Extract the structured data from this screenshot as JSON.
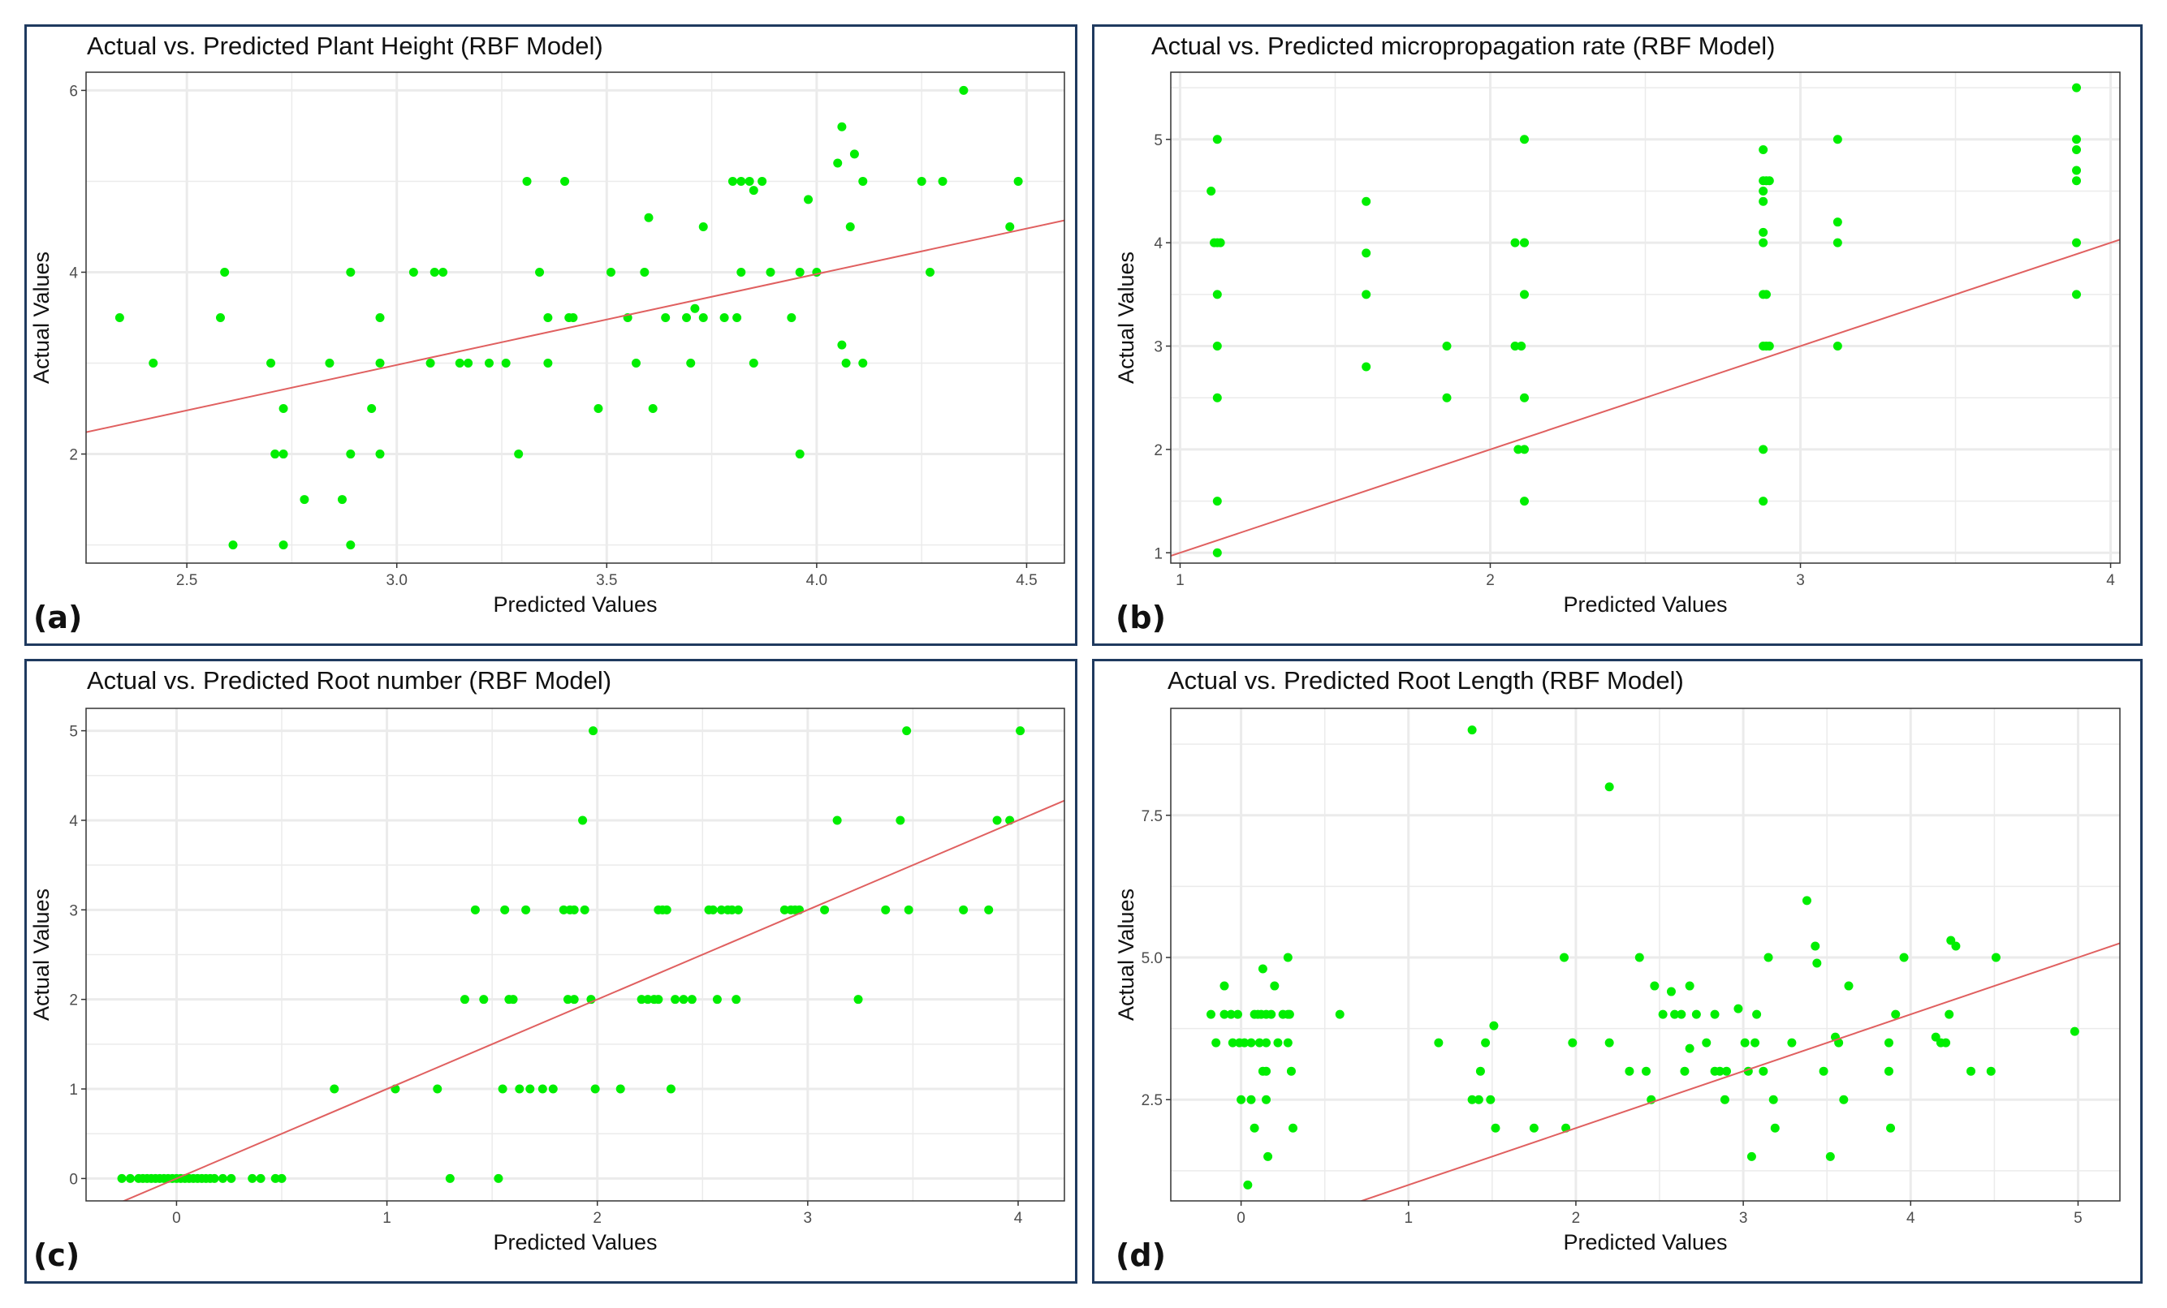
{
  "colors": {
    "point": "#00ee00",
    "line": "#e06060",
    "grid": "#ebebeb",
    "frame": "#333333",
    "panel_border": "#1f3a5f"
  },
  "chart_data": [
    {
      "id": "a",
      "type": "scatter",
      "letter": "(a)",
      "title": "Actual vs. Predicted Plant Height (RBF Model)",
      "xlabel": "Predicted Values",
      "ylabel": "Actual Values",
      "xlim": [
        2.26,
        4.59
      ],
      "ylim": [
        0.8,
        6.2
      ],
      "xticks": [
        2.5,
        3.0,
        3.5,
        4.0,
        4.5
      ],
      "xtick_labels": [
        "2.5",
        "3.0",
        "3.5",
        "4.0",
        "4.5"
      ],
      "yticks": [
        2,
        4,
        6
      ],
      "ytick_labels": [
        "2",
        "4",
        "6"
      ],
      "fit_line": [
        [
          2.26,
          2.24
        ],
        [
          4.59,
          4.57
        ]
      ],
      "points": [
        [
          2.34,
          3.5
        ],
        [
          2.42,
          3.0
        ],
        [
          2.58,
          3.5
        ],
        [
          2.59,
          4.0
        ],
        [
          2.61,
          1.0
        ],
        [
          2.7,
          3.0
        ],
        [
          2.71,
          2.0
        ],
        [
          2.73,
          2.5
        ],
        [
          2.73,
          2.0
        ],
        [
          2.73,
          1.0
        ],
        [
          2.78,
          1.5
        ],
        [
          2.84,
          3.0
        ],
        [
          2.87,
          1.5
        ],
        [
          2.89,
          4.0
        ],
        [
          2.89,
          2.0
        ],
        [
          2.89,
          1.0
        ],
        [
          2.94,
          2.5
        ],
        [
          2.96,
          3.5
        ],
        [
          2.96,
          3.0
        ],
        [
          2.96,
          2.0
        ],
        [
          3.04,
          4.0
        ],
        [
          3.08,
          3.0
        ],
        [
          3.09,
          4.0
        ],
        [
          3.11,
          4.0
        ],
        [
          3.15,
          3.0
        ],
        [
          3.17,
          3.0
        ],
        [
          3.22,
          3.0
        ],
        [
          3.26,
          3.0
        ],
        [
          3.29,
          2.0
        ],
        [
          3.31,
          5.0
        ],
        [
          3.34,
          4.0
        ],
        [
          3.36,
          3.5
        ],
        [
          3.36,
          3.0
        ],
        [
          3.4,
          5.0
        ],
        [
          3.41,
          3.5
        ],
        [
          3.42,
          3.5
        ],
        [
          3.48,
          2.5
        ],
        [
          3.51,
          4.0
        ],
        [
          3.55,
          3.5
        ],
        [
          3.57,
          3.0
        ],
        [
          3.59,
          4.0
        ],
        [
          3.6,
          4.6
        ],
        [
          3.61,
          2.5
        ],
        [
          3.64,
          3.5
        ],
        [
          3.69,
          3.5
        ],
        [
          3.7,
          3.0
        ],
        [
          3.71,
          3.6
        ],
        [
          3.73,
          4.5
        ],
        [
          3.73,
          3.5
        ],
        [
          3.78,
          3.5
        ],
        [
          3.8,
          5.0
        ],
        [
          3.81,
          3.5
        ],
        [
          3.82,
          5.0
        ],
        [
          3.82,
          4.0
        ],
        [
          3.84,
          5.0
        ],
        [
          3.85,
          4.9
        ],
        [
          3.85,
          3.0
        ],
        [
          3.87,
          5.0
        ],
        [
          3.89,
          4.0
        ],
        [
          3.94,
          3.5
        ],
        [
          3.96,
          4.0
        ],
        [
          3.96,
          2.0
        ],
        [
          3.98,
          4.8
        ],
        [
          4.0,
          4.0
        ],
        [
          4.05,
          5.2
        ],
        [
          4.06,
          5.6
        ],
        [
          4.06,
          3.2
        ],
        [
          4.07,
          3.0
        ],
        [
          4.08,
          4.5
        ],
        [
          4.09,
          5.3
        ],
        [
          4.11,
          5.0
        ],
        [
          4.11,
          3.0
        ],
        [
          4.25,
          5.0
        ],
        [
          4.27,
          4.0
        ],
        [
          4.3,
          5.0
        ],
        [
          4.35,
          6.0
        ],
        [
          4.46,
          4.5
        ],
        [
          4.48,
          5.0
        ]
      ]
    },
    {
      "id": "b",
      "type": "scatter",
      "letter": "(b)",
      "title": "Actual vs. Predicted micropropagation rate (RBF Model)",
      "xlabel": "Predicted Values",
      "ylabel": "Actual Values",
      "xlim": [
        0.97,
        4.03
      ],
      "ylim": [
        0.9,
        5.65
      ],
      "xticks": [
        1,
        2,
        3,
        4
      ],
      "xtick_labels": [
        "1",
        "2",
        "3",
        "4"
      ],
      "yticks": [
        1,
        2,
        3,
        4,
        5
      ],
      "ytick_labels": [
        "1",
        "2",
        "3",
        "4",
        "5"
      ],
      "fit_line": [
        [
          0.97,
          0.97
        ],
        [
          4.03,
          4.03
        ]
      ],
      "points": [
        [
          1.1,
          4.5
        ],
        [
          1.11,
          4.0
        ],
        [
          1.12,
          4.0
        ],
        [
          1.12,
          5.0
        ],
        [
          1.12,
          3.5
        ],
        [
          1.12,
          3.0
        ],
        [
          1.12,
          2.5
        ],
        [
          1.12,
          1.5
        ],
        [
          1.12,
          1.0
        ],
        [
          1.13,
          4.0
        ],
        [
          1.6,
          4.4
        ],
        [
          1.6,
          3.9
        ],
        [
          1.6,
          3.5
        ],
        [
          1.6,
          2.8
        ],
        [
          1.86,
          3.0
        ],
        [
          1.86,
          2.5
        ],
        [
          2.08,
          4.0
        ],
        [
          2.08,
          3.0
        ],
        [
          2.09,
          2.0
        ],
        [
          2.1,
          3.0
        ],
        [
          2.11,
          4.0
        ],
        [
          2.11,
          5.0
        ],
        [
          2.11,
          3.5
        ],
        [
          2.11,
          2.5
        ],
        [
          2.11,
          2.0
        ],
        [
          2.11,
          1.5
        ],
        [
          2.11,
          4.0
        ],
        [
          2.88,
          4.9
        ],
        [
          2.88,
          4.6
        ],
        [
          2.88,
          4.5
        ],
        [
          2.88,
          4.4
        ],
        [
          2.88,
          4.1
        ],
        [
          2.88,
          4.0
        ],
        [
          2.88,
          3.5
        ],
        [
          2.88,
          3.0
        ],
        [
          2.88,
          2.0
        ],
        [
          2.88,
          1.5
        ],
        [
          2.89,
          4.6
        ],
        [
          2.89,
          3.5
        ],
        [
          2.89,
          3.0
        ],
        [
          2.9,
          4.6
        ],
        [
          2.9,
          3.0
        ],
        [
          3.12,
          5.0
        ],
        [
          3.12,
          4.2
        ],
        [
          3.12,
          4.0
        ],
        [
          3.12,
          3.0
        ],
        [
          3.89,
          5.5
        ],
        [
          3.89,
          5.0
        ],
        [
          3.89,
          4.9
        ],
        [
          3.89,
          4.7
        ],
        [
          3.89,
          4.6
        ],
        [
          3.89,
          4.0
        ],
        [
          3.89,
          3.5
        ]
      ]
    },
    {
      "id": "c",
      "type": "scatter",
      "letter": "(c)",
      "title": "Actual vs. Predicted Root number (RBF Model)",
      "xlabel": "Predicted Values",
      "ylabel": "Actual Values",
      "xlim": [
        -0.43,
        4.22
      ],
      "ylim": [
        -0.25,
        5.25
      ],
      "xticks": [
        0,
        1,
        2,
        3,
        4
      ],
      "xtick_labels": [
        "0",
        "1",
        "2",
        "3",
        "4"
      ],
      "yticks": [
        0,
        1,
        2,
        3,
        4,
        5
      ],
      "ytick_labels": [
        "0",
        "1",
        "2",
        "3",
        "4",
        "5"
      ],
      "fit_line": [
        [
          -0.43,
          -0.43
        ],
        [
          4.22,
          4.22
        ]
      ],
      "points": [
        [
          -0.26,
          0
        ],
        [
          -0.22,
          0
        ],
        [
          -0.18,
          0
        ],
        [
          -0.16,
          0
        ],
        [
          -0.14,
          0
        ],
        [
          -0.12,
          0
        ],
        [
          -0.1,
          0
        ],
        [
          -0.08,
          0
        ],
        [
          -0.06,
          0
        ],
        [
          -0.04,
          0
        ],
        [
          -0.02,
          0
        ],
        [
          0.0,
          0
        ],
        [
          0.02,
          0
        ],
        [
          0.04,
          0
        ],
        [
          0.06,
          0
        ],
        [
          0.08,
          0
        ],
        [
          0.1,
          0
        ],
        [
          0.12,
          0
        ],
        [
          0.14,
          0
        ],
        [
          0.16,
          0
        ],
        [
          0.18,
          0
        ],
        [
          0.22,
          0
        ],
        [
          0.26,
          0
        ],
        [
          0.36,
          0
        ],
        [
          0.4,
          0
        ],
        [
          0.47,
          0
        ],
        [
          0.5,
          0
        ],
        [
          0.75,
          1
        ],
        [
          1.04,
          1
        ],
        [
          1.24,
          1
        ],
        [
          1.3,
          0
        ],
        [
          1.37,
          2
        ],
        [
          1.42,
          3
        ],
        [
          1.46,
          2
        ],
        [
          1.53,
          0
        ],
        [
          1.55,
          1
        ],
        [
          1.56,
          3
        ],
        [
          1.58,
          2
        ],
        [
          1.6,
          2
        ],
        [
          1.63,
          1
        ],
        [
          1.66,
          3
        ],
        [
          1.68,
          1
        ],
        [
          1.74,
          1
        ],
        [
          1.79,
          1
        ],
        [
          1.84,
          3
        ],
        [
          1.86,
          2
        ],
        [
          1.87,
          3
        ],
        [
          1.89,
          3
        ],
        [
          1.89,
          2
        ],
        [
          1.93,
          4
        ],
        [
          1.94,
          3
        ],
        [
          1.97,
          2
        ],
        [
          1.98,
          5
        ],
        [
          1.99,
          1
        ],
        [
          2.11,
          1
        ],
        [
          2.21,
          2
        ],
        [
          2.24,
          2
        ],
        [
          2.27,
          2
        ],
        [
          2.29,
          2
        ],
        [
          2.29,
          3
        ],
        [
          2.31,
          3
        ],
        [
          2.33,
          3
        ],
        [
          2.35,
          1
        ],
        [
          2.37,
          2
        ],
        [
          2.41,
          2
        ],
        [
          2.45,
          2
        ],
        [
          2.53,
          3
        ],
        [
          2.55,
          3
        ],
        [
          2.57,
          2
        ],
        [
          2.59,
          3
        ],
        [
          2.62,
          3
        ],
        [
          2.64,
          3
        ],
        [
          2.66,
          2
        ],
        [
          2.67,
          3
        ],
        [
          2.89,
          3
        ],
        [
          2.92,
          3
        ],
        [
          2.94,
          3
        ],
        [
          2.96,
          3
        ],
        [
          3.08,
          3
        ],
        [
          3.14,
          4
        ],
        [
          3.24,
          2
        ],
        [
          3.37,
          3
        ],
        [
          3.44,
          4
        ],
        [
          3.47,
          5
        ],
        [
          3.48,
          3
        ],
        [
          3.74,
          3
        ],
        [
          3.86,
          3
        ],
        [
          3.9,
          4
        ],
        [
          3.96,
          4
        ],
        [
          4.01,
          5
        ]
      ]
    },
    {
      "id": "d",
      "type": "scatter",
      "letter": "(d)",
      "title": "Actual vs. Predicted Root Length (RBF Model)",
      "xlabel": "Predicted Values",
      "ylabel": "Actual Values",
      "xlim": [
        -0.42,
        5.25
      ],
      "ylim": [
        0.72,
        9.38
      ],
      "xticks": [
        0,
        1,
        2,
        3,
        4,
        5
      ],
      "xtick_labels": [
        "0",
        "1",
        "2",
        "3",
        "4",
        "5"
      ],
      "yticks": [
        2.5,
        5.0,
        7.5
      ],
      "ytick_labels": [
        "2.5",
        "5.0",
        "7.5"
      ],
      "fit_line": [
        [
          0.6,
          0.6
        ],
        [
          5.25,
          5.25
        ]
      ],
      "points": [
        [
          -0.18,
          4.0
        ],
        [
          -0.15,
          3.5
        ],
        [
          -0.1,
          4.0
        ],
        [
          -0.1,
          4.5
        ],
        [
          -0.06,
          4.0
        ],
        [
          -0.05,
          3.5
        ],
        [
          -0.02,
          4.0
        ],
        [
          -0.01,
          3.5
        ],
        [
          0.0,
          2.5
        ],
        [
          0.02,
          3.5
        ],
        [
          0.04,
          1.0
        ],
        [
          0.06,
          3.5
        ],
        [
          0.06,
          2.5
        ],
        [
          0.08,
          4.0
        ],
        [
          0.08,
          2.0
        ],
        [
          0.1,
          4.0
        ],
        [
          0.11,
          3.5
        ],
        [
          0.12,
          4.0
        ],
        [
          0.13,
          4.8
        ],
        [
          0.13,
          3.0
        ],
        [
          0.15,
          4.0
        ],
        [
          0.15,
          3.5
        ],
        [
          0.15,
          2.5
        ],
        [
          0.15,
          3.0
        ],
        [
          0.16,
          1.5
        ],
        [
          0.18,
          4.0
        ],
        [
          0.2,
          4.5
        ],
        [
          0.22,
          3.5
        ],
        [
          0.25,
          4.0
        ],
        [
          0.28,
          5.0
        ],
        [
          0.28,
          4.0
        ],
        [
          0.28,
          3.5
        ],
        [
          0.29,
          4.0
        ],
        [
          0.3,
          3.0
        ],
        [
          0.31,
          2.0
        ],
        [
          0.59,
          4.0
        ],
        [
          1.18,
          3.5
        ],
        [
          1.38,
          9.0
        ],
        [
          1.38,
          2.5
        ],
        [
          1.42,
          2.5
        ],
        [
          1.43,
          3.0
        ],
        [
          1.46,
          3.5
        ],
        [
          1.49,
          2.5
        ],
        [
          1.51,
          3.8
        ],
        [
          1.52,
          2.0
        ],
        [
          1.75,
          2.0
        ],
        [
          1.93,
          5.0
        ],
        [
          1.94,
          2.0
        ],
        [
          1.98,
          3.5
        ],
        [
          2.2,
          8.0
        ],
        [
          2.2,
          3.5
        ],
        [
          2.32,
          3.0
        ],
        [
          2.38,
          5.0
        ],
        [
          2.42,
          3.0
        ],
        [
          2.45,
          2.5
        ],
        [
          2.47,
          4.5
        ],
        [
          2.52,
          4.0
        ],
        [
          2.57,
          4.4
        ],
        [
          2.59,
          4.0
        ],
        [
          2.63,
          4.0
        ],
        [
          2.65,
          3.0
        ],
        [
          2.68,
          4.5
        ],
        [
          2.68,
          3.4
        ],
        [
          2.72,
          4.0
        ],
        [
          2.78,
          3.5
        ],
        [
          2.83,
          4.0
        ],
        [
          2.83,
          3.0
        ],
        [
          2.86,
          3.0
        ],
        [
          2.89,
          2.5
        ],
        [
          2.9,
          3.0
        ],
        [
          2.97,
          4.1
        ],
        [
          3.01,
          3.5
        ],
        [
          3.03,
          3.0
        ],
        [
          3.05,
          1.5
        ],
        [
          3.07,
          3.5
        ],
        [
          3.08,
          4.0
        ],
        [
          3.12,
          3.0
        ],
        [
          3.15,
          5.0
        ],
        [
          3.18,
          2.5
        ],
        [
          3.19,
          2.0
        ],
        [
          3.29,
          3.5
        ],
        [
          3.38,
          6.0
        ],
        [
          3.43,
          5.2
        ],
        [
          3.44,
          4.9
        ],
        [
          3.48,
          3.0
        ],
        [
          3.52,
          1.5
        ],
        [
          3.55,
          3.6
        ],
        [
          3.57,
          3.5
        ],
        [
          3.6,
          2.5
        ],
        [
          3.63,
          4.5
        ],
        [
          3.87,
          3.5
        ],
        [
          3.87,
          3.0
        ],
        [
          3.88,
          2.0
        ],
        [
          3.91,
          4.0
        ],
        [
          3.96,
          5.0
        ],
        [
          4.15,
          3.6
        ],
        [
          4.18,
          3.5
        ],
        [
          4.21,
          3.5
        ],
        [
          4.23,
          4.0
        ],
        [
          4.24,
          5.3
        ],
        [
          4.27,
          5.2
        ],
        [
          4.36,
          3.0
        ],
        [
          4.48,
          3.0
        ],
        [
          4.51,
          5.0
        ],
        [
          4.98,
          3.7
        ]
      ]
    }
  ]
}
